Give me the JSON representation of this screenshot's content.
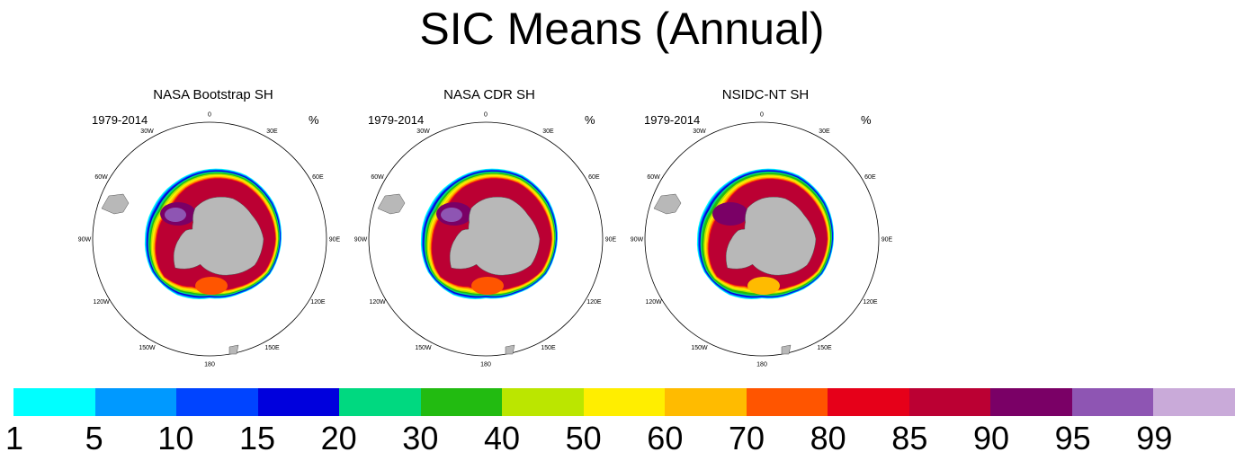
{
  "title": "SIC Means (Annual)",
  "panels": [
    {
      "title": "NASA Bootstrap SH",
      "period": "1979-2014",
      "unit": "%"
    },
    {
      "title": "NASA CDR SH",
      "period": "1979-2014",
      "unit": "%"
    },
    {
      "title": "NSIDC-NT SH",
      "period": "1979-2014",
      "unit": "%"
    }
  ],
  "lon_labels": [
    "0",
    "30E",
    "60E",
    "90E",
    "120E",
    "150E",
    "180",
    "150W",
    "120W",
    "90W",
    "60W",
    "30W"
  ],
  "colorbar": {
    "labels": [
      "1",
      "5",
      "10",
      "15",
      "20",
      "30",
      "40",
      "50",
      "60",
      "70",
      "80",
      "85",
      "90",
      "95",
      "99"
    ],
    "colors": [
      "#00ffff",
      "#0099ff",
      "#0044ff",
      "#0000dd",
      "#00d980",
      "#22bb11",
      "#bbe600",
      "#ffee00",
      "#ffbb00",
      "#ff5500",
      "#e60019",
      "#bb0033",
      "#7a0066",
      "#8e55b3",
      "#c9aad9"
    ]
  },
  "map_colors": {
    "land": "#b8b8b8",
    "ocean": "#ffffff"
  }
}
